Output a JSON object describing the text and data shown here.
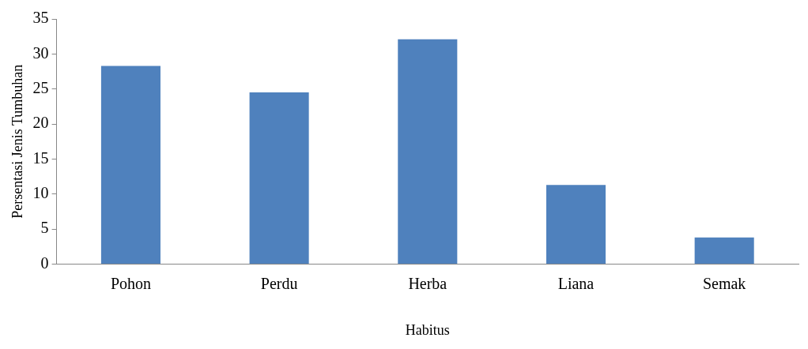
{
  "chart_data": {
    "type": "bar",
    "xlabel": "Habitus",
    "ylabel": "Persentasi Jenis Tumbuhan",
    "categories": [
      "Pohon",
      "Perdu",
      "Herba",
      "Liana",
      "Semak"
    ],
    "values": [
      28.3,
      24.5,
      32.1,
      11.3,
      3.8
    ],
    "color": "#4f81bd",
    "ylim": [
      0,
      35
    ],
    "yticks": [
      0,
      5,
      10,
      15,
      20,
      25,
      30,
      35
    ],
    "grid": false,
    "legend": false
  }
}
